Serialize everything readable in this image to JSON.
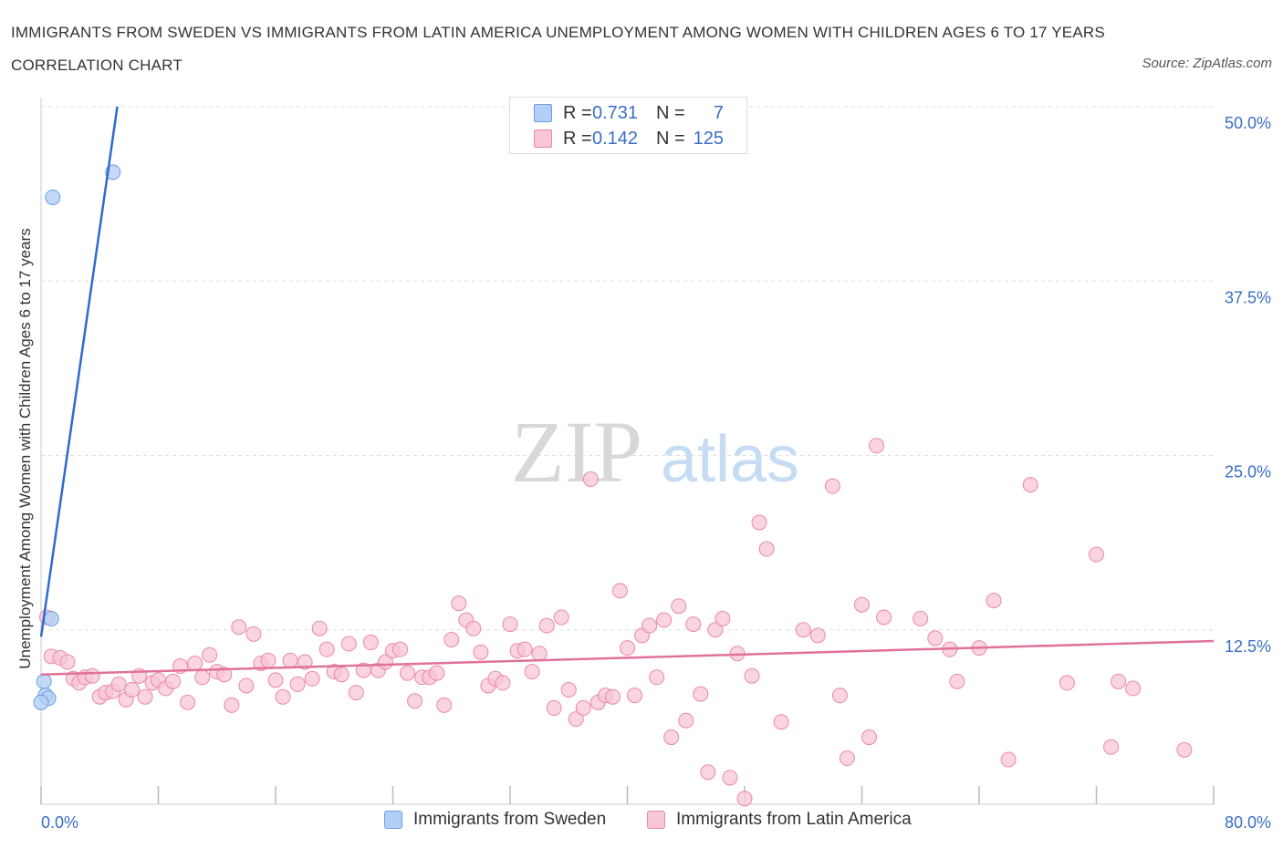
{
  "title": "IMMIGRANTS FROM SWEDEN VS IMMIGRANTS FROM LATIN AMERICA UNEMPLOYMENT AMONG WOMEN WITH CHILDREN AGES 6 TO 17 YEARS CORRELATION CHART",
  "source": "Source: ZipAtlas.com",
  "watermark": {
    "zip": "ZIP",
    "atlas": "atlas"
  },
  "legend": {
    "sweden": {
      "r_label": "R =",
      "r_value": "0.731",
      "n_label": "N =",
      "n_value": "7"
    },
    "latin": {
      "r_label": "R =",
      "r_value": "0.142",
      "n_label": "N =",
      "n_value": "125"
    }
  },
  "colors": {
    "sweden_fill": "#b4cff5",
    "sweden_stroke": "#6a9ee0",
    "sweden_line": "#2e6ad1",
    "latin_fill": "#f8c6d4",
    "latin_stroke": "#e88aa8",
    "latin_line": "#e0719a",
    "tick_text": "#3a6fc4",
    "grid": "#dddddd"
  },
  "chart_data": {
    "type": "scatter",
    "title": "IMMIGRANTS FROM SWEDEN VS IMMIGRANTS FROM LATIN AMERICA UNEMPLOYMENT AMONG WOMEN WITH CHILDREN AGES 6 TO 17 YEARS CORRELATION CHART",
    "xlabel": "",
    "ylabel": "Unemployment Among Women with Children Ages 6 to 17 years",
    "xlim": [
      0,
      80
    ],
    "ylim": [
      0,
      50
    ],
    "x_tick_labels": [
      "0.0%",
      "80.0%"
    ],
    "y_ticks": [
      12.5,
      25.0,
      37.5,
      50.0
    ],
    "y_tick_labels": [
      "12.5%",
      "25.0%",
      "37.5%",
      "50.0%"
    ],
    "grid": true,
    "legend_position": "top-center",
    "series": [
      {
        "name": "Immigrants from Sweden",
        "r": 0.731,
        "n": 7,
        "points": [
          [
            0.8,
            43.5
          ],
          [
            4.9,
            45.3
          ],
          [
            0.7,
            13.3
          ],
          [
            0.2,
            8.8
          ],
          [
            0.3,
            7.8
          ],
          [
            0.5,
            7.6
          ],
          [
            0.0,
            7.3
          ]
        ],
        "trend": {
          "x": [
            0.0,
            5.2
          ],
          "y": [
            12.0,
            50.0
          ]
        }
      },
      {
        "name": "Immigrants from Latin America",
        "r": 0.142,
        "n": 125,
        "points": [
          [
            0.4,
            13.4
          ],
          [
            0.7,
            10.6
          ],
          [
            1.3,
            10.5
          ],
          [
            1.8,
            10.2
          ],
          [
            2.2,
            9.0
          ],
          [
            2.6,
            8.7
          ],
          [
            3.0,
            9.1
          ],
          [
            3.5,
            9.2
          ],
          [
            4.0,
            7.7
          ],
          [
            4.4,
            8.0
          ],
          [
            4.9,
            8.1
          ],
          [
            5.3,
            8.6
          ],
          [
            5.8,
            7.5
          ],
          [
            6.2,
            8.2
          ],
          [
            6.7,
            9.2
          ],
          [
            7.1,
            7.7
          ],
          [
            7.6,
            8.7
          ],
          [
            8.0,
            8.9
          ],
          [
            8.5,
            8.3
          ],
          [
            9.0,
            8.8
          ],
          [
            9.5,
            9.9
          ],
          [
            10.0,
            7.3
          ],
          [
            10.5,
            10.1
          ],
          [
            11.0,
            9.1
          ],
          [
            11.5,
            10.7
          ],
          [
            12.0,
            9.5
          ],
          [
            12.5,
            9.3
          ],
          [
            13.0,
            7.1
          ],
          [
            13.5,
            12.7
          ],
          [
            14.0,
            8.5
          ],
          [
            14.5,
            12.2
          ],
          [
            15.0,
            10.1
          ],
          [
            15.5,
            10.3
          ],
          [
            16.0,
            8.9
          ],
          [
            16.5,
            7.7
          ],
          [
            17.0,
            10.3
          ],
          [
            17.5,
            8.6
          ],
          [
            18.0,
            10.2
          ],
          [
            18.5,
            9.0
          ],
          [
            19.0,
            12.6
          ],
          [
            19.5,
            11.1
          ],
          [
            20.0,
            9.5
          ],
          [
            20.5,
            9.3
          ],
          [
            21.0,
            11.5
          ],
          [
            21.5,
            8.0
          ],
          [
            22.0,
            9.6
          ],
          [
            22.5,
            11.6
          ],
          [
            23.0,
            9.6
          ],
          [
            23.5,
            10.2
          ],
          [
            24.0,
            11.0
          ],
          [
            24.5,
            11.1
          ],
          [
            25.0,
            9.4
          ],
          [
            25.5,
            7.4
          ],
          [
            26.0,
            9.1
          ],
          [
            26.5,
            9.1
          ],
          [
            27.0,
            9.4
          ],
          [
            27.5,
            7.1
          ],
          [
            28.0,
            11.8
          ],
          [
            28.5,
            14.4
          ],
          [
            29.0,
            13.2
          ],
          [
            29.5,
            12.6
          ],
          [
            30.0,
            10.9
          ],
          [
            30.5,
            8.5
          ],
          [
            31.0,
            9.0
          ],
          [
            31.5,
            8.7
          ],
          [
            32.0,
            12.9
          ],
          [
            32.5,
            11.0
          ],
          [
            33.0,
            11.1
          ],
          [
            33.5,
            9.5
          ],
          [
            34.0,
            10.8
          ],
          [
            34.5,
            12.8
          ],
          [
            35.0,
            6.9
          ],
          [
            35.5,
            13.4
          ],
          [
            36.0,
            8.2
          ],
          [
            36.5,
            6.1
          ],
          [
            37.0,
            6.9
          ],
          [
            37.5,
            23.3
          ],
          [
            38.0,
            7.3
          ],
          [
            38.5,
            7.8
          ],
          [
            39.0,
            7.7
          ],
          [
            39.5,
            15.3
          ],
          [
            40.0,
            11.2
          ],
          [
            40.5,
            7.8
          ],
          [
            41.0,
            12.1
          ],
          [
            41.5,
            12.8
          ],
          [
            42.0,
            9.1
          ],
          [
            42.5,
            13.2
          ],
          [
            43.0,
            4.8
          ],
          [
            43.5,
            14.2
          ],
          [
            44.0,
            6.0
          ],
          [
            44.5,
            12.9
          ],
          [
            45.0,
            7.9
          ],
          [
            45.5,
            2.3
          ],
          [
            46.0,
            12.5
          ],
          [
            46.5,
            13.3
          ],
          [
            47.0,
            1.9
          ],
          [
            47.5,
            10.8
          ],
          [
            48.0,
            0.4
          ],
          [
            48.5,
            9.2
          ],
          [
            49.0,
            20.2
          ],
          [
            49.5,
            18.3
          ],
          [
            50.5,
            5.9
          ],
          [
            52.0,
            12.5
          ],
          [
            53.0,
            12.1
          ],
          [
            54.0,
            22.8
          ],
          [
            55.0,
            3.3
          ],
          [
            56.0,
            14.3
          ],
          [
            56.5,
            4.8
          ],
          [
            57.0,
            25.7
          ],
          [
            57.5,
            13.4
          ],
          [
            60.0,
            13.3
          ],
          [
            61.0,
            11.9
          ],
          [
            62.5,
            8.8
          ],
          [
            64.0,
            11.2
          ],
          [
            65.0,
            14.6
          ],
          [
            66.0,
            3.2
          ],
          [
            67.5,
            22.9
          ],
          [
            70.0,
            8.7
          ],
          [
            72.0,
            17.9
          ],
          [
            73.0,
            4.1
          ],
          [
            73.5,
            8.8
          ],
          [
            74.5,
            8.3
          ],
          [
            78.0,
            3.9
          ],
          [
            54.5,
            7.8
          ],
          [
            62.0,
            11.1
          ]
        ],
        "trend": {
          "x": [
            0,
            80
          ],
          "y": [
            9.3,
            11.7
          ]
        }
      }
    ]
  }
}
